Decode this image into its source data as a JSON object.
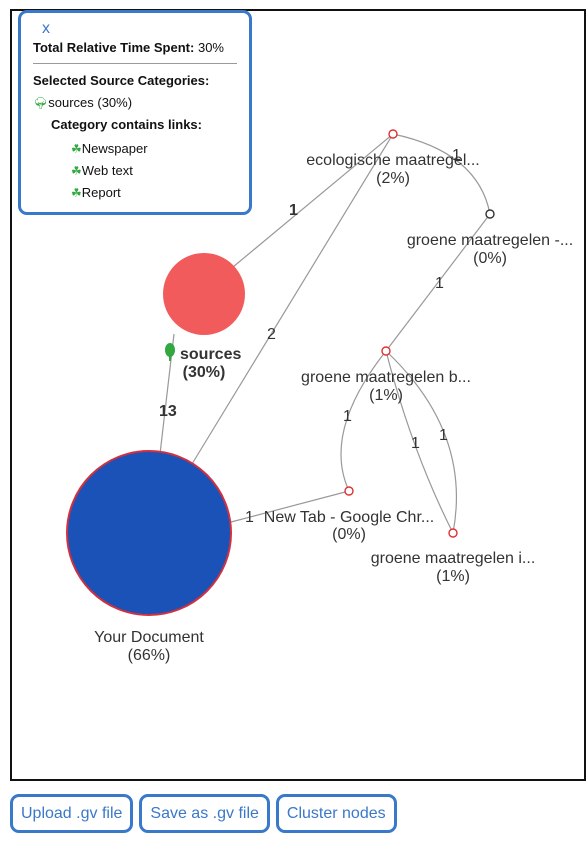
{
  "panel": {
    "close": "x",
    "total_label": "Total Relative Time Spent:",
    "total_value": "30%",
    "selected_heading": "Selected Source Categories:",
    "category": "sources (30%)",
    "links_heading": "Category contains links:",
    "links": [
      "Newspaper",
      "Web text",
      "Report"
    ]
  },
  "buttons": {
    "upload": "Upload .gv file",
    "save": "Save as .gv file",
    "cluster": "Cluster nodes"
  },
  "colors": {
    "panel_border": "#3a78c9",
    "source_node": "#f25b5b",
    "document_node": "#1a52b8",
    "small_node_stroke": "#e03030",
    "accent_green": "#34a840"
  },
  "nodes": {
    "ecologische": {
      "name": "ecologische maatregel...",
      "pct": "(2%)"
    },
    "groene1": {
      "name": "groene maatregelen -...",
      "pct": "(0%)"
    },
    "groene_b": {
      "name": "groene maatregelen b...",
      "pct": "(1%)"
    },
    "newtab": {
      "name": "New Tab - Google Chr...",
      "pct": "(0%)"
    },
    "groene_i": {
      "name": "groene maatregelen i...",
      "pct": "(1%)"
    },
    "sources": {
      "name": "sources",
      "pct": "(30%)"
    },
    "document": {
      "name": "Your Document",
      "pct": "(66%)"
    }
  },
  "edges": {
    "src_eco": "1",
    "doc_eco": "2",
    "src_doc": "13",
    "eco_g1": "1",
    "g1_gb": "1",
    "gb_nt": "1",
    "doc_nt": "1",
    "gb_gi_a": "1",
    "gb_gi_b": "1"
  }
}
